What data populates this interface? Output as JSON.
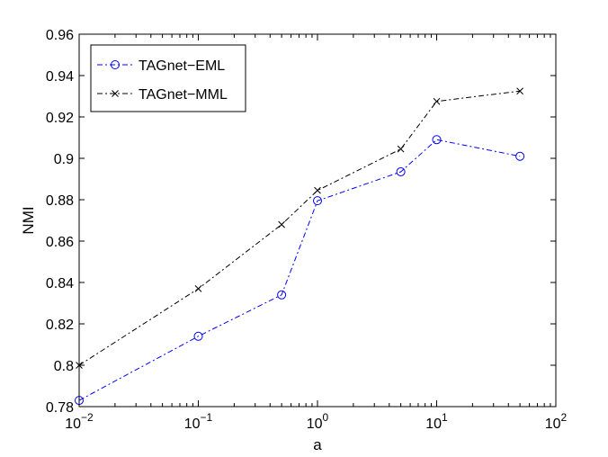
{
  "chart_data": {
    "type": "line",
    "xscale": "log",
    "xlim": [
      0.01,
      100
    ],
    "ylim": [
      0.78,
      0.96
    ],
    "xlabel": "a",
    "ylabel": "NMI",
    "grid": false,
    "legend": "top-left",
    "x_tick_labels": [
      {
        "value": 0.01,
        "base": "10",
        "exp": "−2"
      },
      {
        "value": 0.1,
        "base": "10",
        "exp": "−1"
      },
      {
        "value": 1,
        "base": "10",
        "exp": "0"
      },
      {
        "value": 10,
        "base": "10",
        "exp": "1"
      },
      {
        "value": 100,
        "base": "10",
        "exp": "2"
      }
    ],
    "y_ticks": [
      0.78,
      0.8,
      0.82,
      0.84,
      0.86,
      0.88,
      0.9,
      0.92,
      0.94,
      0.96
    ],
    "y_tick_labels": [
      "0.78",
      "0.8",
      "0.82",
      "0.84",
      "0.86",
      "0.88",
      "0.9",
      "0.92",
      "0.94",
      "0.96"
    ],
    "series": [
      {
        "name": "TAGnet−EML",
        "color": "#0000ff",
        "marker": "circle",
        "linestyle": "dash-dot",
        "x": [
          0.01,
          0.1,
          0.5,
          1,
          5,
          10,
          50
        ],
        "y": [
          0.783,
          0.814,
          0.834,
          0.8795,
          0.8935,
          0.909,
          0.901
        ]
      },
      {
        "name": "TAGnet−MML",
        "color": "#000000",
        "marker": "x",
        "linestyle": "dash-dot",
        "x": [
          0.01,
          0.1,
          0.5,
          1,
          5,
          10,
          50
        ],
        "y": [
          0.8,
          0.837,
          0.868,
          0.8845,
          0.9045,
          0.9275,
          0.9325
        ]
      }
    ]
  }
}
